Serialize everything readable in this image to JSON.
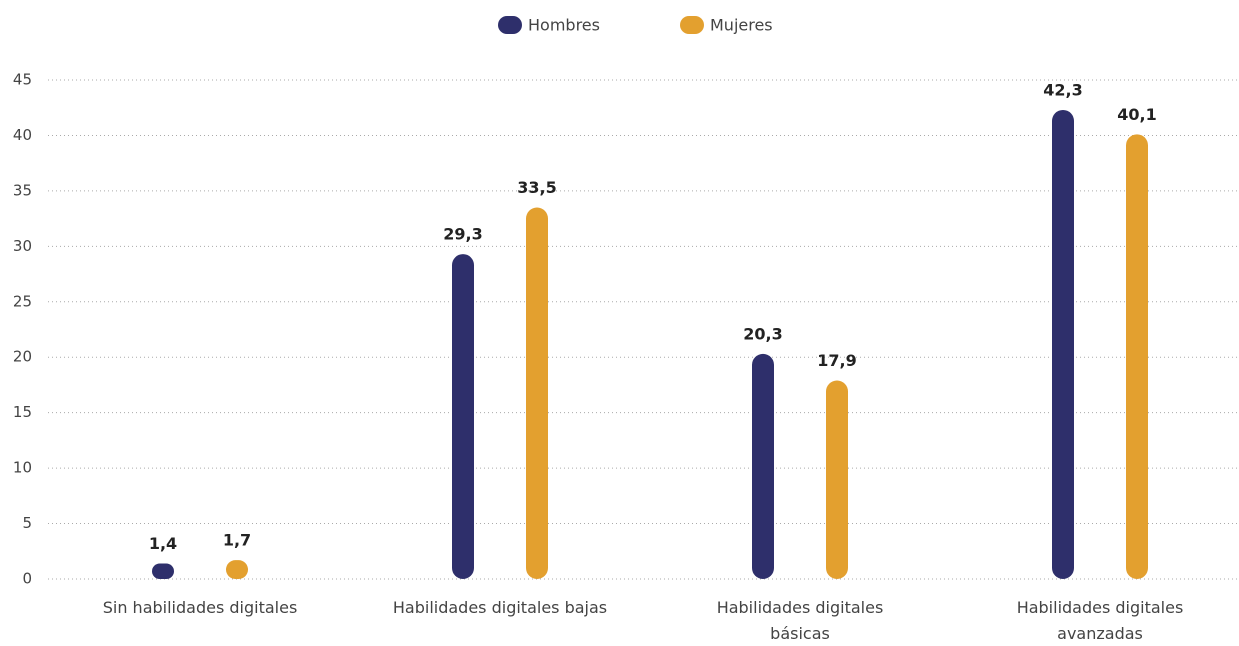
{
  "chart_data": {
    "type": "bar",
    "categories": [
      "Sin habilidades digitales",
      "Habilidades digitales bajas",
      "Habilidades digitales básicas",
      "Habilidades digitales avanzadas"
    ],
    "series": [
      {
        "name": "Hombres",
        "color": "#2e2f6b",
        "values": [
          1.4,
          29.3,
          20.3,
          42.3
        ],
        "value_labels": [
          "1,4",
          "29,3",
          "20,3",
          "42,3"
        ]
      },
      {
        "name": "Mujeres",
        "color": "#e3a02f",
        "values": [
          1.7,
          33.5,
          17.9,
          40.1
        ],
        "value_labels": [
          "1,7",
          "33,5",
          "17,9",
          "40,1"
        ]
      }
    ],
    "ylim": [
      0,
      45
    ],
    "yticks": [
      0,
      5,
      10,
      15,
      20,
      25,
      30,
      35,
      40,
      45
    ],
    "grid": true,
    "legend": "top"
  }
}
